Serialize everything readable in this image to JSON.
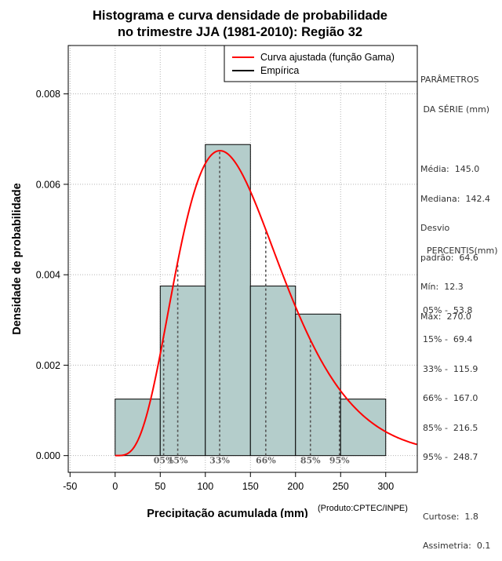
{
  "chart_data": {
    "type": "histogram",
    "title_lines": [
      "Histograma e curva densidade de probabilidade",
      "no trimestre JJA (1981-2010): Região 32"
    ],
    "xlabel": "Precipitação acumulada (mm)",
    "ylabel": "Densidade de probabilidade",
    "product_note": "(Produto:CPTEC/INPE)",
    "xlim": [
      -52,
      335
    ],
    "ylim": [
      -0.00037,
      0.00907
    ],
    "x_ticks": [
      -50,
      0,
      50,
      100,
      150,
      200,
      250,
      300
    ],
    "x_tick_labels": [
      "-50",
      "0",
      "50",
      "100",
      "150",
      "200",
      "250",
      "300"
    ],
    "y_ticks": [
      0,
      0.002,
      0.004,
      0.006,
      0.008
    ],
    "y_tick_labels": [
      "0.000",
      "0.002",
      "0.004",
      "0.006",
      "0.008"
    ],
    "grid": true,
    "bins": [
      {
        "x0": 0,
        "x1": 50,
        "density": 0.00125
      },
      {
        "x0": 50,
        "x1": 100,
        "density": 0.00375
      },
      {
        "x0": 100,
        "x1": 150,
        "density": 0.00688
      },
      {
        "x0": 150,
        "x1": 200,
        "density": 0.00375
      },
      {
        "x0": 200,
        "x1": 250,
        "density": 0.00313
      },
      {
        "x0": 250,
        "x1": 300,
        "density": 0.00125
      }
    ],
    "bar_color": "#b4cdcb",
    "curve_color": "#ff0000",
    "gamma_fit": {
      "shape": 5.02,
      "scale": 28.9
    },
    "percentile_lines": [
      {
        "x": 53.8,
        "label": "05%"
      },
      {
        "x": 69.4,
        "label": "15%"
      },
      {
        "x": 115.9,
        "label": "33%"
      },
      {
        "x": 167.0,
        "label": "66%"
      },
      {
        "x": 216.5,
        "label": "85%"
      },
      {
        "x": 248.7,
        "label": "95%"
      }
    ],
    "legend": {
      "position": "top-right",
      "entries": [
        {
          "label": "Curva ajustada (função Gama)",
          "color": "#ff0000"
        },
        {
          "label": "Empírica",
          "color": "#000000"
        }
      ]
    }
  },
  "side_panel": {
    "params_title_1": "PARÂMETROS",
    "params_title_2": " DA SÉRIE (mm)",
    "media": "Média:  145.0",
    "mediana": "Mediana:  142.4",
    "desvio_1": "Desvio",
    "desvio_2": "padrão:  64.6",
    "min": "Mín:  12.3",
    "max": "Máx:  270.0",
    "percentis_title": "PERCENTIS(mm)",
    "p05": "05% -  53.8",
    "p15": "15% -  69.4",
    "p33": "33% -  115.9",
    "p66": "66% -  167.0",
    "p85": "85% -  216.5",
    "p95": "95% -  248.7",
    "curtose": "Curtose:  1.8",
    "assimetria": "Assimetria:  0.1"
  }
}
